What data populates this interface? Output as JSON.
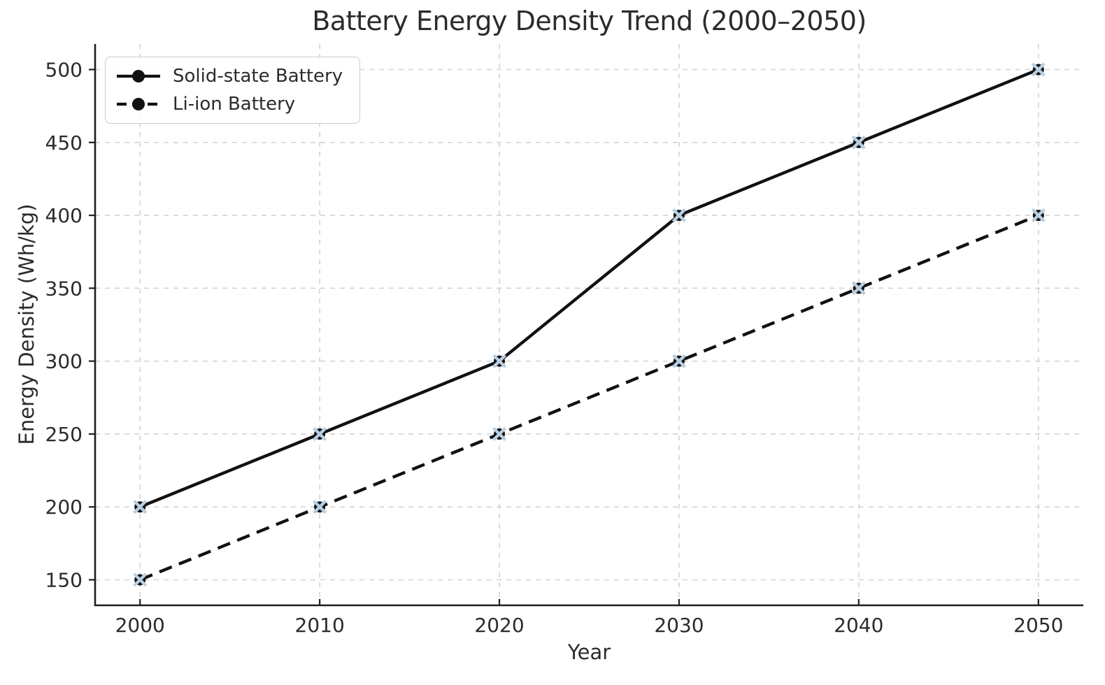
{
  "chart_data": {
    "type": "line",
    "title": "Battery Energy Density Trend (2000–2050)",
    "xlabel": "Year",
    "ylabel": "Energy Density (Wh/kg)",
    "x": [
      2000,
      2010,
      2020,
      2030,
      2040,
      2050
    ],
    "series": [
      {
        "name": "Solid-state Battery",
        "values": [
          200,
          250,
          300,
          400,
          450,
          500
        ],
        "line_style": "solid",
        "color": "#111111",
        "marker": "circle-with-x"
      },
      {
        "name": "Li-ion Battery",
        "values": [
          150,
          200,
          250,
          300,
          350,
          400
        ],
        "line_style": "dashed",
        "color": "#111111",
        "marker": "circle-with-x"
      }
    ],
    "x_ticks": [
      2000,
      2010,
      2020,
      2030,
      2040,
      2050
    ],
    "y_ticks": [
      150,
      200,
      250,
      300,
      350,
      400,
      450,
      500
    ],
    "xlim": [
      1997.5,
      2052.5
    ],
    "ylim": [
      132.5,
      517.5
    ],
    "grid": true,
    "grid_style": "dashed",
    "legend_position": "upper left",
    "colors": {
      "line": "#111111",
      "marker_fill": "#111111",
      "marker_x": "#b9cfe2",
      "grid": "#d3d3d3",
      "spine": "#1f1f1f",
      "text": "#2b2b2b",
      "legend_border": "#cccccc"
    }
  }
}
